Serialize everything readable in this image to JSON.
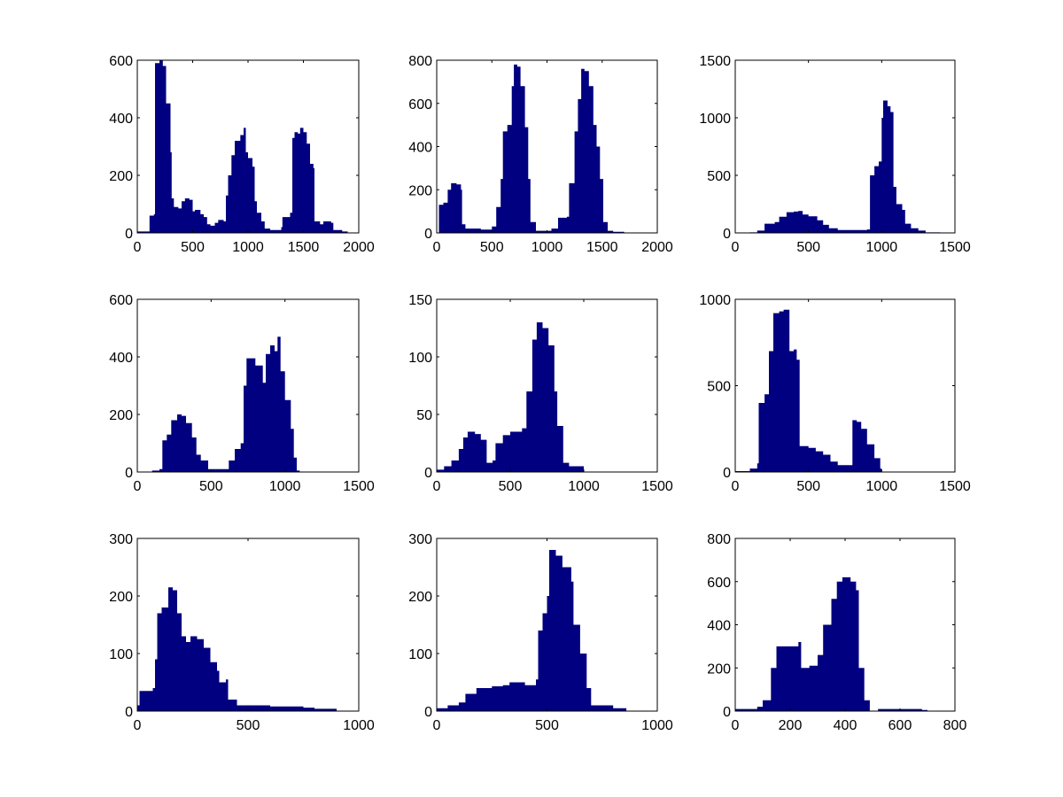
{
  "fill_color": "#000080",
  "chart_data": [
    {
      "type": "area",
      "title": "",
      "xlabel": "",
      "ylabel": "",
      "xlim": [
        0,
        2000
      ],
      "ylim": [
        0,
        600
      ],
      "xticks": [
        "0",
        "500",
        "1000",
        "1500",
        "2000"
      ],
      "yticks": [
        "0",
        "200",
        "400",
        "600"
      ],
      "x": [
        0,
        100,
        110,
        150,
        160,
        200,
        230,
        260,
        300,
        310,
        330,
        370,
        400,
        430,
        470,
        500,
        520,
        570,
        600,
        630,
        660,
        700,
        730,
        780,
        800,
        820,
        850,
        880,
        930,
        960,
        980,
        1000,
        1040,
        1060,
        1080,
        1120,
        1150,
        1200,
        1300,
        1310,
        1380,
        1400,
        1420,
        1450,
        1470,
        1500,
        1530,
        1560,
        1590,
        1600,
        1650,
        1680,
        1750,
        1770,
        1850,
        1900,
        2000
      ],
      "y": [
        5,
        5,
        60,
        65,
        590,
        600,
        580,
        450,
        280,
        120,
        90,
        85,
        110,
        120,
        115,
        75,
        80,
        65,
        55,
        30,
        25,
        35,
        45,
        40,
        130,
        200,
        270,
        320,
        340,
        365,
        280,
        260,
        230,
        110,
        70,
        40,
        15,
        10,
        20,
        55,
        70,
        330,
        350,
        345,
        365,
        350,
        310,
        240,
        225,
        40,
        30,
        40,
        35,
        10,
        5,
        0,
        0
      ]
    },
    {
      "type": "area",
      "title": "",
      "xlabel": "",
      "ylabel": "",
      "xlim": [
        0,
        2000
      ],
      "ylim": [
        0,
        800
      ],
      "xticks": [
        "0",
        "500",
        "1000",
        "1500",
        "2000"
      ],
      "yticks": [
        "0",
        "200",
        "400",
        "600",
        "800"
      ],
      "x": [
        0,
        20,
        60,
        100,
        130,
        180,
        220,
        230,
        260,
        400,
        500,
        540,
        580,
        600,
        640,
        680,
        700,
        730,
        760,
        800,
        830,
        850,
        900,
        1000,
        1040,
        1100,
        1180,
        1200,
        1250,
        1280,
        1310,
        1340,
        1380,
        1420,
        1450,
        1480,
        1510,
        1550,
        1600,
        1700,
        2000
      ],
      "y": [
        0,
        130,
        140,
        200,
        230,
        225,
        200,
        40,
        20,
        15,
        30,
        120,
        250,
        470,
        500,
        680,
        780,
        770,
        680,
        490,
        250,
        50,
        10,
        10,
        20,
        70,
        75,
        230,
        470,
        620,
        760,
        750,
        680,
        500,
        400,
        250,
        50,
        10,
        5,
        0,
        0
      ]
    },
    {
      "type": "area",
      "title": "",
      "xlabel": "",
      "ylabel": "",
      "xlim": [
        0,
        1500
      ],
      "ylim": [
        0,
        1500
      ],
      "xticks": [
        "0",
        "500",
        "1000",
        "1500"
      ],
      "yticks": [
        "0",
        "500",
        "1000",
        "1500"
      ],
      "x": [
        0,
        100,
        150,
        200,
        270,
        300,
        350,
        400,
        430,
        460,
        500,
        560,
        600,
        640,
        700,
        800,
        900,
        920,
        950,
        980,
        1000,
        1010,
        1040,
        1060,
        1080,
        1100,
        1140,
        1160,
        1200,
        1250,
        1300,
        1400,
        1500
      ],
      "y": [
        0,
        5,
        20,
        80,
        95,
        140,
        180,
        185,
        190,
        160,
        145,
        110,
        70,
        40,
        25,
        25,
        30,
        500,
        580,
        620,
        1000,
        1150,
        1100,
        1050,
        400,
        250,
        200,
        80,
        40,
        20,
        5,
        0,
        0
      ]
    },
    {
      "type": "area",
      "title": "",
      "xlabel": "",
      "ylabel": "",
      "xlim": [
        0,
        1500
      ],
      "ylim": [
        0,
        600
      ],
      "xticks": [
        "0",
        "500",
        "1000",
        "1500"
      ],
      "yticks": [
        "0",
        "200",
        "400",
        "600"
      ],
      "x": [
        0,
        100,
        150,
        170,
        200,
        230,
        270,
        300,
        330,
        370,
        400,
        430,
        480,
        600,
        620,
        660,
        700,
        720,
        740,
        780,
        800,
        850,
        870,
        900,
        930,
        950,
        970,
        1000,
        1040,
        1060,
        1080,
        1100,
        1500
      ],
      "y": [
        0,
        5,
        10,
        110,
        130,
        180,
        200,
        195,
        170,
        120,
        60,
        40,
        10,
        10,
        40,
        80,
        100,
        300,
        395,
        395,
        370,
        310,
        410,
        440,
        420,
        470,
        350,
        250,
        150,
        50,
        5,
        0,
        0
      ]
    },
    {
      "type": "area",
      "title": "",
      "xlabel": "",
      "ylabel": "",
      "xlim": [
        0,
        1500
      ],
      "ylim": [
        0,
        150
      ],
      "xticks": [
        "0",
        "500",
        "1000",
        "1500"
      ],
      "yticks": [
        "0",
        "50",
        "100",
        "150"
      ],
      "x": [
        0,
        50,
        100,
        150,
        180,
        210,
        260,
        300,
        340,
        380,
        400,
        450,
        500,
        550,
        580,
        610,
        650,
        680,
        720,
        760,
        800,
        820,
        860,
        900,
        980,
        1000,
        1500
      ],
      "y": [
        2,
        5,
        10,
        20,
        30,
        35,
        33,
        28,
        8,
        10,
        25,
        32,
        35,
        35,
        38,
        70,
        115,
        130,
        125,
        110,
        70,
        40,
        8,
        5,
        5,
        0,
        0
      ]
    },
    {
      "type": "area",
      "title": "",
      "xlabel": "",
      "ylabel": "",
      "xlim": [
        0,
        1500
      ],
      "ylim": [
        0,
        1000
      ],
      "xticks": [
        "0",
        "500",
        "1000",
        "1500"
      ],
      "yticks": [
        "0",
        "500",
        "1000"
      ],
      "x": [
        0,
        100,
        150,
        160,
        200,
        230,
        260,
        300,
        330,
        370,
        400,
        420,
        440,
        500,
        550,
        600,
        650,
        700,
        780,
        800,
        830,
        860,
        900,
        950,
        990,
        1000,
        1500
      ],
      "y": [
        5,
        20,
        50,
        400,
        450,
        700,
        920,
        930,
        940,
        700,
        710,
        650,
        150,
        140,
        120,
        100,
        60,
        40,
        40,
        300,
        290,
        250,
        160,
        80,
        20,
        0,
        0
      ]
    },
    {
      "type": "area",
      "title": "",
      "xlabel": "",
      "ylabel": "",
      "xlim": [
        0,
        1000
      ],
      "ylim": [
        0,
        300
      ],
      "xticks": [
        "0",
        "500",
        "1000"
      ],
      "yticks": [
        "0",
        "100",
        "200",
        "300"
      ],
      "x": [
        0,
        10,
        60,
        70,
        80,
        90,
        110,
        140,
        160,
        180,
        200,
        220,
        240,
        270,
        300,
        330,
        360,
        370,
        400,
        410,
        450,
        500,
        600,
        700,
        750,
        800,
        900,
        1000
      ],
      "y": [
        10,
        35,
        35,
        40,
        90,
        170,
        180,
        215,
        210,
        170,
        130,
        120,
        130,
        125,
        110,
        85,
        70,
        50,
        55,
        20,
        10,
        10,
        8,
        8,
        6,
        4,
        0,
        0
      ]
    },
    {
      "type": "area",
      "title": "",
      "xlabel": "",
      "ylabel": "",
      "xlim": [
        0,
        1000
      ],
      "ylim": [
        0,
        300
      ],
      "xticks": [
        "0",
        "500",
        "1000"
      ],
      "yticks": [
        "0",
        "100",
        "200",
        "300"
      ],
      "x": [
        0,
        50,
        100,
        130,
        180,
        250,
        300,
        330,
        400,
        450,
        460,
        480,
        500,
        510,
        540,
        570,
        610,
        620,
        650,
        680,
        700,
        800,
        860,
        1000
      ],
      "y": [
        5,
        10,
        15,
        30,
        40,
        43,
        45,
        50,
        45,
        55,
        140,
        170,
        200,
        280,
        270,
        250,
        225,
        150,
        100,
        40,
        10,
        5,
        0,
        0
      ]
    },
    {
      "type": "area",
      "title": "",
      "xlabel": "",
      "ylabel": "",
      "xlim": [
        0,
        800
      ],
      "ylim": [
        0,
        800
      ],
      "xticks": [
        "0",
        "200",
        "400",
        "600",
        "800"
      ],
      "yticks": [
        "0",
        "200",
        "400",
        "600",
        "800"
      ],
      "x": [
        0,
        50,
        80,
        100,
        130,
        150,
        220,
        230,
        240,
        270,
        300,
        320,
        350,
        370,
        390,
        420,
        440,
        450,
        470,
        490,
        520,
        650,
        680,
        700,
        800
      ],
      "y": [
        10,
        10,
        20,
        50,
        200,
        300,
        300,
        320,
        200,
        210,
        260,
        400,
        520,
        600,
        620,
        600,
        560,
        200,
        50,
        0,
        10,
        10,
        5,
        0,
        0
      ]
    }
  ]
}
